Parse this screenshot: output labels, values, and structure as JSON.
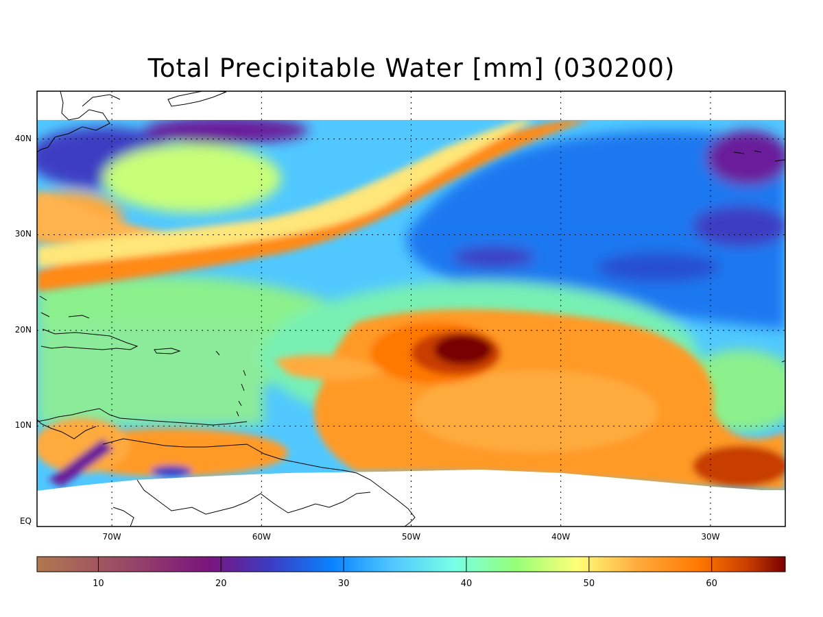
{
  "title": "Total Precipitable Water [mm]  (030200)",
  "map": {
    "lon_range": [
      -75,
      -25
    ],
    "lat_range": [
      -0.5,
      45
    ],
    "lat_ticks": [
      {
        "value": 0,
        "label": "EQ"
      },
      {
        "value": 10,
        "label": "10N"
      },
      {
        "value": 20,
        "label": "20N"
      },
      {
        "value": 30,
        "label": "30N"
      },
      {
        "value": 40,
        "label": "40N"
      }
    ],
    "lon_ticks": [
      {
        "value": -70,
        "label": "70W"
      },
      {
        "value": -60,
        "label": "60W"
      },
      {
        "value": -50,
        "label": "50W"
      },
      {
        "value": -40,
        "label": "40W"
      },
      {
        "value": -30,
        "label": "30W"
      }
    ],
    "gridlines": true
  },
  "colorbar": {
    "range": [
      5,
      66
    ],
    "ticks": [
      {
        "value": 10,
        "label": "10"
      },
      {
        "value": 20,
        "label": "20"
      },
      {
        "value": 30,
        "label": "30"
      },
      {
        "value": 40,
        "label": "40"
      },
      {
        "value": 50,
        "label": "50"
      },
      {
        "value": 60,
        "label": "60"
      }
    ],
    "stops": [
      {
        "value": 5,
        "color": "#b07850"
      },
      {
        "value": 12,
        "color": "#9a4a66"
      },
      {
        "value": 19,
        "color": "#7a147e"
      },
      {
        "value": 24,
        "color": "#3c3cc2"
      },
      {
        "value": 29,
        "color": "#0a82ff"
      },
      {
        "value": 34,
        "color": "#50c8ff"
      },
      {
        "value": 39,
        "color": "#78ffe6"
      },
      {
        "value": 44,
        "color": "#96ff78"
      },
      {
        "value": 49,
        "color": "#ffff78"
      },
      {
        "value": 54,
        "color": "#ffaa3c"
      },
      {
        "value": 59,
        "color": "#ff7800"
      },
      {
        "value": 63,
        "color": "#c83c00"
      },
      {
        "value": 66,
        "color": "#780000"
      }
    ]
  }
}
